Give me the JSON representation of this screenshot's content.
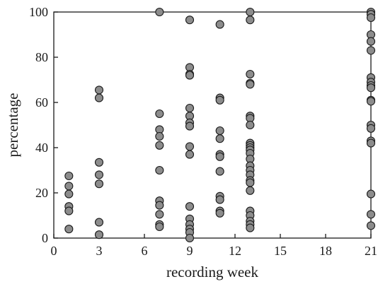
{
  "chart_data": {
    "type": "scatter",
    "title": "",
    "xlabel": "recording week",
    "ylabel": "percentage",
    "xlim": [
      0,
      21
    ],
    "ylim": [
      0,
      100
    ],
    "xticks": [
      0,
      3,
      6,
      9,
      12,
      15,
      18,
      21
    ],
    "yticks": [
      0,
      20,
      40,
      60,
      80,
      100
    ],
    "grid": false,
    "point_color": "#8c8c8c",
    "series": [
      {
        "points": [
          {
            "x": 1,
            "y": 27.5
          },
          {
            "x": 1,
            "y": 23
          },
          {
            "x": 1,
            "y": 19.5
          },
          {
            "x": 1,
            "y": 14
          },
          {
            "x": 1,
            "y": 12
          },
          {
            "x": 1,
            "y": 4
          },
          {
            "x": 3,
            "y": 65.5
          },
          {
            "x": 3,
            "y": 62
          },
          {
            "x": 3,
            "y": 33.5
          },
          {
            "x": 3,
            "y": 28
          },
          {
            "x": 3,
            "y": 24
          },
          {
            "x": 3,
            "y": 7
          },
          {
            "x": 3,
            "y": 1.5
          },
          {
            "x": 7,
            "y": 100
          },
          {
            "x": 7,
            "y": 55
          },
          {
            "x": 7,
            "y": 48
          },
          {
            "x": 7,
            "y": 45
          },
          {
            "x": 7,
            "y": 41
          },
          {
            "x": 7,
            "y": 30
          },
          {
            "x": 7,
            "y": 16.5
          },
          {
            "x": 7,
            "y": 14.5
          },
          {
            "x": 7,
            "y": 10.5
          },
          {
            "x": 7,
            "y": 6
          },
          {
            "x": 7,
            "y": 5
          },
          {
            "x": 9,
            "y": 96.5
          },
          {
            "x": 9,
            "y": 75.5
          },
          {
            "x": 9,
            "y": 72.5
          },
          {
            "x": 9,
            "y": 72
          },
          {
            "x": 9,
            "y": 57.5
          },
          {
            "x": 9,
            "y": 54
          },
          {
            "x": 9,
            "y": 51
          },
          {
            "x": 9,
            "y": 49.5
          },
          {
            "x": 9,
            "y": 40.5
          },
          {
            "x": 9,
            "y": 37
          },
          {
            "x": 9,
            "y": 14
          },
          {
            "x": 9,
            "y": 8.5
          },
          {
            "x": 9,
            "y": 6
          },
          {
            "x": 9,
            "y": 4
          },
          {
            "x": 9,
            "y": 2.5
          },
          {
            "x": 9,
            "y": 0
          },
          {
            "x": 11,
            "y": 94.5
          },
          {
            "x": 11,
            "y": 62
          },
          {
            "x": 11,
            "y": 61
          },
          {
            "x": 11,
            "y": 47.5
          },
          {
            "x": 11,
            "y": 44
          },
          {
            "x": 11,
            "y": 37
          },
          {
            "x": 11,
            "y": 36
          },
          {
            "x": 11,
            "y": 29.5
          },
          {
            "x": 11,
            "y": 18.5
          },
          {
            "x": 11,
            "y": 17
          },
          {
            "x": 11,
            "y": 12
          },
          {
            "x": 11,
            "y": 11
          },
          {
            "x": 13,
            "y": 100
          },
          {
            "x": 13,
            "y": 96.5
          },
          {
            "x": 13,
            "y": 72.5
          },
          {
            "x": 13,
            "y": 68.5
          },
          {
            "x": 13,
            "y": 68
          },
          {
            "x": 13,
            "y": 54
          },
          {
            "x": 13,
            "y": 53
          },
          {
            "x": 13,
            "y": 50
          },
          {
            "x": 13,
            "y": 42
          },
          {
            "x": 13,
            "y": 41
          },
          {
            "x": 13,
            "y": 40
          },
          {
            "x": 13,
            "y": 39
          },
          {
            "x": 13,
            "y": 37.5
          },
          {
            "x": 13,
            "y": 35
          },
          {
            "x": 13,
            "y": 32
          },
          {
            "x": 13,
            "y": 30
          },
          {
            "x": 13,
            "y": 28
          },
          {
            "x": 13,
            "y": 25.5
          },
          {
            "x": 13,
            "y": 24.5
          },
          {
            "x": 13,
            "y": 21
          },
          {
            "x": 13,
            "y": 12
          },
          {
            "x": 13,
            "y": 10
          },
          {
            "x": 13,
            "y": 7.5
          },
          {
            "x": 13,
            "y": 6
          },
          {
            "x": 13,
            "y": 4.5
          },
          {
            "x": 21,
            "y": 100
          },
          {
            "x": 21,
            "y": 99
          },
          {
            "x": 21,
            "y": 97.5
          },
          {
            "x": 21,
            "y": 90
          },
          {
            "x": 21,
            "y": 87
          },
          {
            "x": 21,
            "y": 83
          },
          {
            "x": 21,
            "y": 71
          },
          {
            "x": 21,
            "y": 69
          },
          {
            "x": 21,
            "y": 67.5
          },
          {
            "x": 21,
            "y": 66.5
          },
          {
            "x": 21,
            "y": 61
          },
          {
            "x": 21,
            "y": 60.5
          },
          {
            "x": 21,
            "y": 50
          },
          {
            "x": 21,
            "y": 48.5
          },
          {
            "x": 21,
            "y": 43
          },
          {
            "x": 21,
            "y": 42
          },
          {
            "x": 21,
            "y": 19.5
          },
          {
            "x": 21,
            "y": 10.5
          },
          {
            "x": 21,
            "y": 5.5
          }
        ]
      }
    ]
  }
}
